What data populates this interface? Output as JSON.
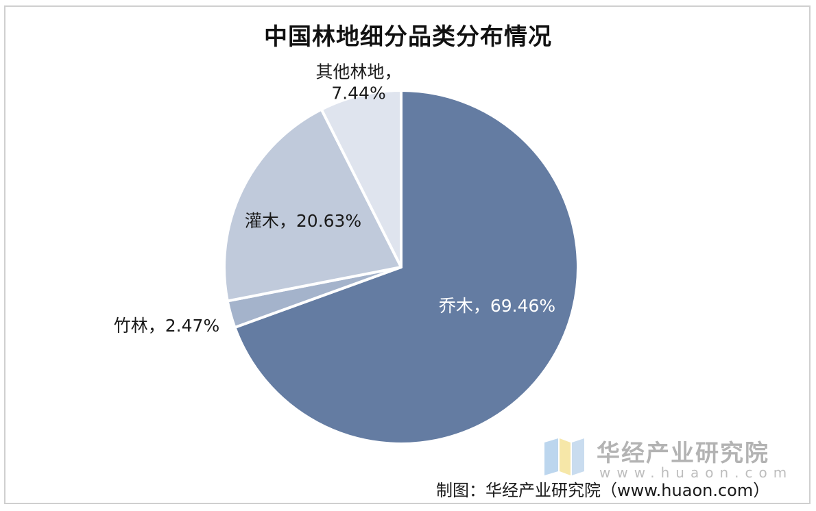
{
  "chart_data": {
    "type": "pie",
    "title": "中国林地细分品类分布情况",
    "slices": [
      {
        "name": "乔木",
        "value": 69.46,
        "label_line1": "乔木，69.46%",
        "label_line2": "",
        "color": "#647ca2",
        "label_color": "#ffffff"
      },
      {
        "name": "竹林",
        "value": 2.47,
        "label_line1": "竹林，2.47%",
        "label_line2": "",
        "color": "#a4b3cb",
        "label_color": "#1a1a1a"
      },
      {
        "name": "灌木",
        "value": 20.63,
        "label_line1": "灌木，20.63%",
        "label_line2": "",
        "color": "#c0cadb",
        "label_color": "#1a1a1a"
      },
      {
        "name": "其他林地",
        "value": 7.44,
        "label_line1": "其他林地，",
        "label_line2": "7.44%",
        "color": "#dfe4ee",
        "label_color": "#1a1a1a"
      }
    ],
    "start_angle_deg": 0,
    "direction": "clockwise"
  },
  "watermark": {
    "name": "华经产业研究院",
    "url": "www.huaon.com"
  },
  "source_note": "制图：华经产业研究院（www.huaon.com）"
}
